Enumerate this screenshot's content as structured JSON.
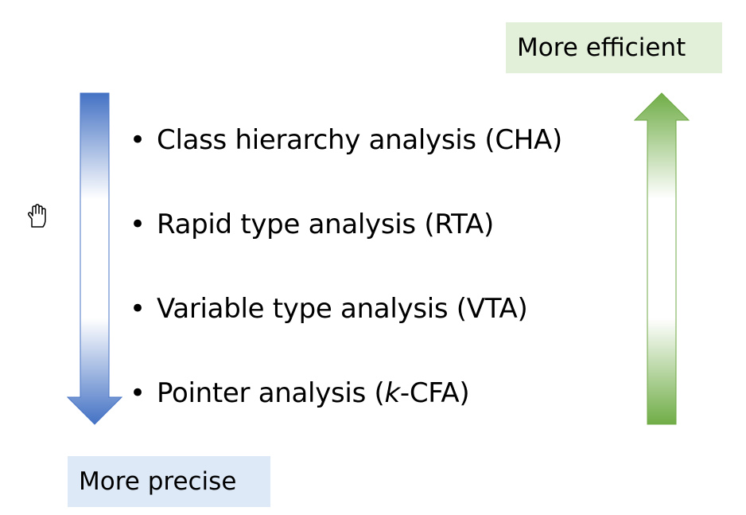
{
  "top_label": {
    "text": "More efficient",
    "background": "#e2efd9"
  },
  "bottom_label": {
    "text": "More precise",
    "background": "#dde9f6"
  },
  "bullet_symbol": "•",
  "analyses": [
    {
      "label": "Class hierarchy analysis (CHA)"
    },
    {
      "label": "Rapid type analysis (RTA)"
    },
    {
      "label": "Variable type analysis (VTA)"
    },
    {
      "label_before": "Pointer analysis (",
      "label_italic": "k",
      "label_after": "-CFA)"
    }
  ],
  "arrows": {
    "precision": {
      "direction": "down",
      "color": "#4472c4"
    },
    "efficiency": {
      "direction": "up",
      "color": "#70ad47"
    }
  },
  "cursor_icon": "hand-cursor-icon"
}
